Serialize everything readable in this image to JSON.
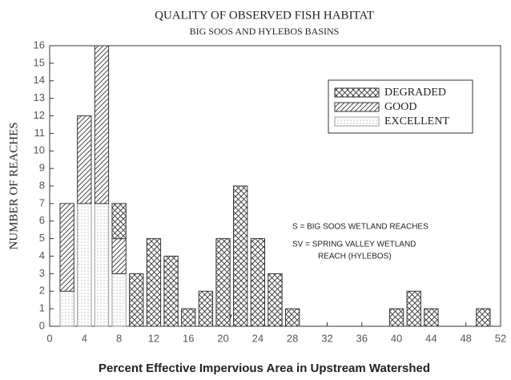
{
  "chart_data": {
    "type": "bar",
    "stacked": true,
    "title": "QUALITY OF OBSERVED FISH HABITAT",
    "subtitle": "BIG SOOS AND HYLEBOS BASINS",
    "x_label": "Percent Effective Impervious Area in Upstream Watershed",
    "y_label": "NUMBER OF REACHES",
    "x": [
      2,
      4,
      6,
      8,
      10,
      12,
      14,
      16,
      18,
      20,
      22,
      24,
      26,
      28,
      40,
      42,
      44,
      50
    ],
    "series": [
      {
        "name": "DEGRADED",
        "color": "#333333",
        "pattern": "crosshatch",
        "values": [
          0,
          0,
          0,
          2,
          3,
          5,
          4,
          1,
          2,
          5,
          8,
          5,
          3,
          1,
          1,
          2,
          1,
          1
        ]
      },
      {
        "name": "GOOD",
        "color": "#333333",
        "pattern": "hatch",
        "values": [
          5,
          5,
          9,
          2,
          0,
          0,
          0,
          0,
          0,
          0,
          0,
          0,
          0,
          0,
          0,
          0,
          0,
          0
        ]
      },
      {
        "name": "EXCELLENT",
        "color": "#999999",
        "pattern": "dots",
        "values": [
          2,
          7,
          7,
          3,
          0,
          0,
          0,
          0,
          0,
          0,
          0,
          0,
          0,
          0,
          0,
          0,
          0,
          0
        ]
      }
    ],
    "xlim": [
      0,
      52
    ],
    "xticks": [
      0,
      4,
      8,
      12,
      16,
      20,
      24,
      28,
      32,
      36,
      40,
      44,
      48,
      52
    ],
    "ylim": [
      0,
      16
    ],
    "yticks": [
      0,
      1,
      2,
      3,
      4,
      5,
      6,
      7,
      8,
      9,
      10,
      11,
      12,
      13,
      14,
      15,
      16
    ],
    "legend": "upper right",
    "annotations": [
      "S = BIG SOOS WETLAND REACHES",
      "SV = SPRING VALLEY WETLAND",
      "REACH (HYLEBOS)",
      "S",
      "S",
      "SV"
    ]
  }
}
